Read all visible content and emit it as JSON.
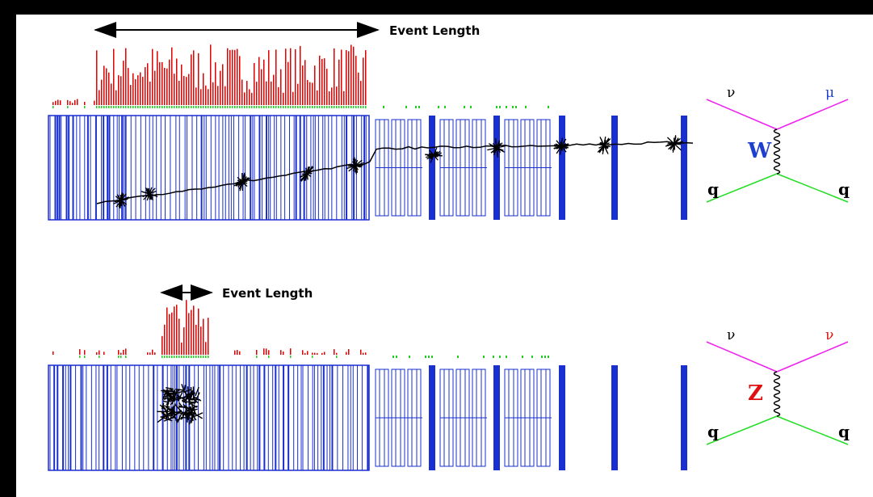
{
  "panels": [
    {
      "event_length": "Event Length",
      "diagram": {
        "top_left": "ν",
        "top_right": "μ",
        "boson": "W",
        "bottom_left": "q",
        "bottom_right": "q"
      }
    },
    {
      "event_length": "Event Length",
      "diagram": {
        "top_left": "ν",
        "top_right": "ν",
        "boson": "Z",
        "bottom_left": "q",
        "bottom_right": "q"
      }
    }
  ]
}
